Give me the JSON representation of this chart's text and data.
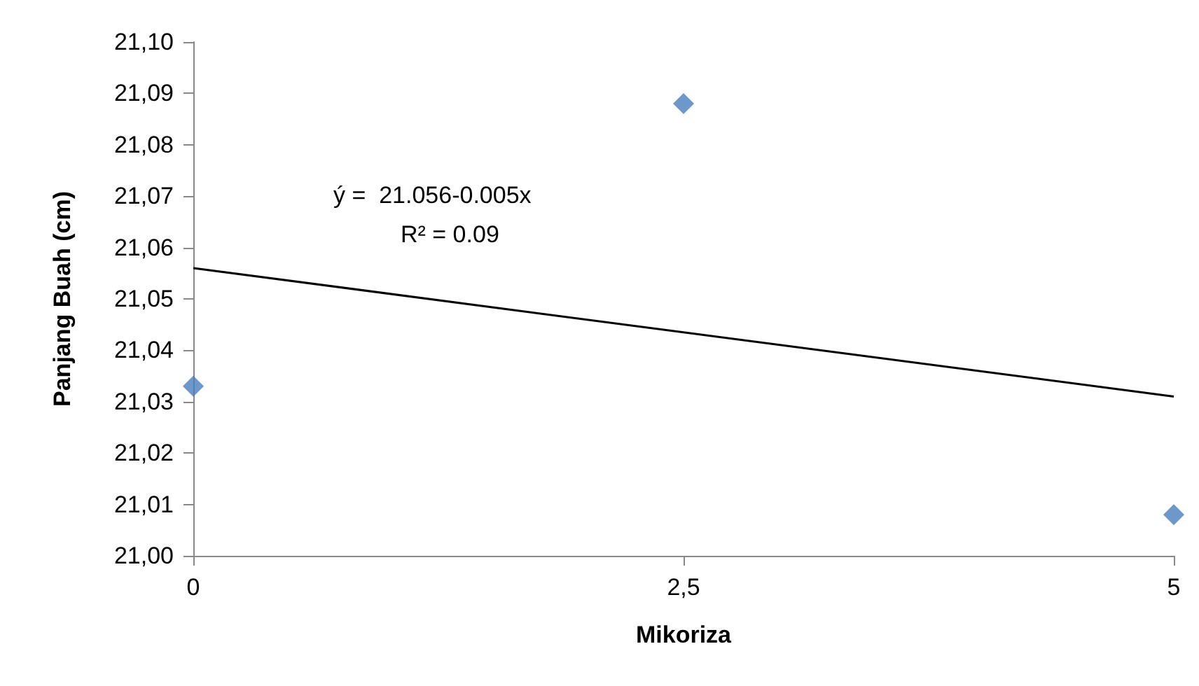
{
  "chart_data": {
    "type": "scatter",
    "xlabel": "Mikoriza",
    "ylabel": "Panjang Buah (cm)",
    "series": [
      {
        "color": "#4a7ebb",
        "marker": "diamond",
        "x": [
          0,
          2.5,
          5
        ],
        "values": [
          21.033,
          21.088,
          21.008
        ]
      },
      {
        "type": "line",
        "color": "#000000",
        "marker": "none",
        "line_style": "solid",
        "x": [
          0,
          5
        ],
        "values": [
          21.056,
          21.031
        ]
      }
    ],
    "xlim": [
      0,
      5
    ],
    "xticks": [
      0,
      {
        "value": 2.5,
        "label": "2,5"
      },
      5
    ],
    "ylim": [
      21.0,
      21.1
    ],
    "yticks": [
      {
        "value": 21.0,
        "label": "21,00"
      },
      {
        "value": 21.01,
        "label": "21,01"
      },
      {
        "value": 21.02,
        "label": "21,02"
      },
      {
        "value": 21.03,
        "label": "21,03"
      },
      {
        "value": 21.04,
        "label": "21,04"
      },
      {
        "value": 21.05,
        "label": "21,05"
      },
      {
        "value": 21.06,
        "label": "21,06"
      },
      {
        "value": 21.07,
        "label": "21,07"
      },
      {
        "value": 21.08,
        "label": "21,08"
      },
      {
        "value": 21.09,
        "label": "21,09"
      },
      {
        "value": 21.1,
        "label": "21,10"
      }
    ],
    "annotations": [
      "ý =  21.056-0.005x",
      "R² = 0.09"
    ],
    "grid": false
  }
}
